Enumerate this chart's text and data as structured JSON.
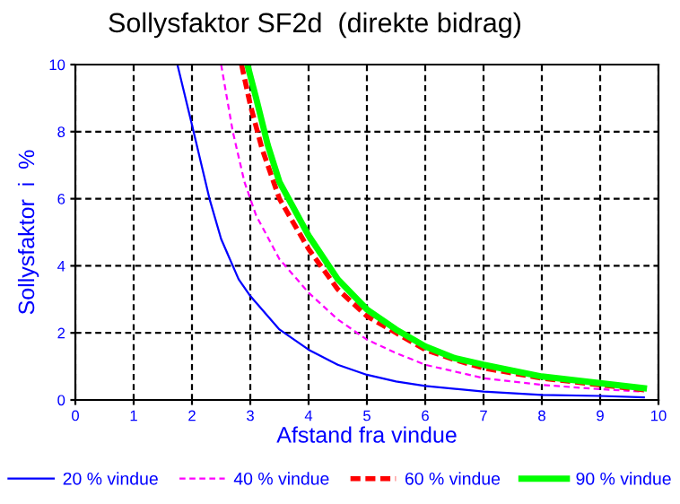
{
  "chart_data": {
    "type": "line",
    "title": "Sollysfaktor SF2d  (direkte bidrag)",
    "xlabel": "Afstand fra vindue",
    "ylabel": "Sollysfaktor  i  %",
    "xlim": [
      0,
      10
    ],
    "ylim": [
      0,
      10
    ],
    "xticks": [
      0,
      1,
      2,
      3,
      4,
      5,
      6,
      7,
      8,
      9,
      10
    ],
    "yticks": [
      0,
      2,
      4,
      6,
      8,
      10
    ],
    "grid": true,
    "legend": "bottom",
    "marker": "none",
    "series": [
      {
        "name": "20 % vindue",
        "color": "#0000ff",
        "line_style": "solid",
        "x": [
          1.75,
          2,
          2.3,
          2.5,
          2.8,
          3,
          3.5,
          4,
          4.5,
          5,
          5.5,
          6,
          7,
          8,
          9,
          9.75
        ],
        "values": [
          10,
          8.2,
          6,
          4.8,
          3.6,
          3.1,
          2.1,
          1.5,
          1.05,
          0.75,
          0.55,
          0.42,
          0.25,
          0.15,
          0.12,
          0.08
        ]
      },
      {
        "name": "40 % vindue",
        "color": "#ff00ff",
        "line_style": "dashed",
        "x": [
          2.5,
          2.7,
          2.9,
          3.1,
          3.5,
          4,
          4.5,
          5,
          5.5,
          6,
          6.5,
          7,
          8,
          9,
          9.75
        ],
        "values": [
          10,
          8,
          6.5,
          5.5,
          4.2,
          3.2,
          2.4,
          1.8,
          1.4,
          1.05,
          0.85,
          0.65,
          0.45,
          0.32,
          0.25
        ]
      },
      {
        "name": "60 % vindue",
        "color": "#ff0000",
        "line_style": "dashed",
        "x": [
          2.85,
          3,
          3.2,
          3.5,
          4,
          4.5,
          5,
          5.5,
          6,
          6.5,
          7,
          8,
          9,
          9.75
        ],
        "values": [
          10,
          8.8,
          7.5,
          6,
          4.5,
          3.3,
          2.5,
          2,
          1.5,
          1.2,
          0.95,
          0.65,
          0.45,
          0.3
        ]
      },
      {
        "name": "90 % vindue",
        "color": "#00ff00",
        "line_style": "solid",
        "x": [
          2.95,
          3.1,
          3.3,
          3.5,
          4,
          4.5,
          5,
          5.5,
          6,
          6.5,
          7,
          8,
          9,
          9.75
        ],
        "values": [
          10,
          9,
          7.6,
          6.5,
          4.9,
          3.6,
          2.7,
          2.1,
          1.6,
          1.25,
          1.05,
          0.7,
          0.5,
          0.35
        ]
      }
    ]
  }
}
